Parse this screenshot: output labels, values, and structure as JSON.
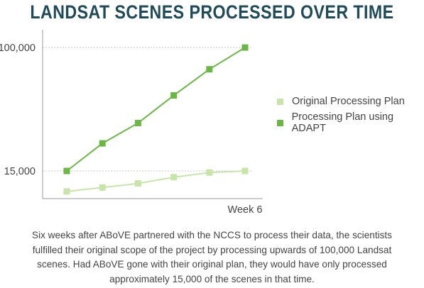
{
  "chart_data": {
    "type": "line",
    "title": "LANDSAT SCENES PROCESSED OVER TIME",
    "x": [
      "",
      "",
      "",
      "",
      "",
      "Week 6"
    ],
    "y_tick_labels": [
      "15,000",
      "100,000"
    ],
    "y_ticks": [
      15000,
      100000
    ],
    "grid": false,
    "legend_position": "right",
    "series": [
      {
        "name": "Original Processing Plan",
        "color": "#c6e5a6",
        "values": [
          900,
          3600,
          6400,
          10700,
          13900,
          15000
        ]
      },
      {
        "name": "Processing Plan using ADAPT",
        "color": "#6ab843",
        "values": [
          15000,
          34000,
          48000,
          67000,
          85000,
          100000
        ]
      }
    ]
  },
  "caption": "Six weeks after ABoVE partnered with the NCCS to process their data, the scientists fulfilled their original scope of the project by processing upwards of 100,000 Landsat scenes. Had ABoVE gone with their original plan, they would have only processed approximately 15,000 of the scenes in that time."
}
